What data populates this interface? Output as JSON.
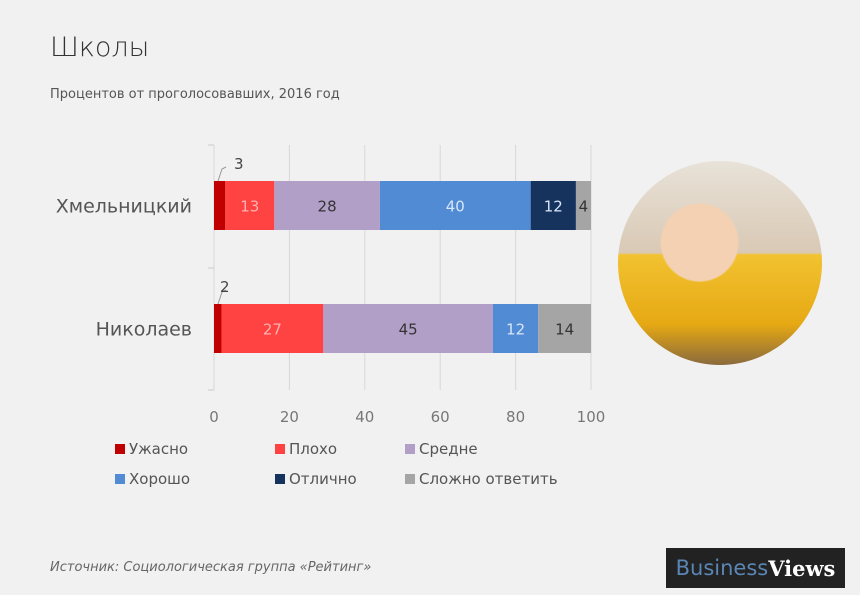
{
  "header": {
    "title": "Школы",
    "subtitle": "Процентов от проголосовавших, 2016 год"
  },
  "chart_data": {
    "type": "bar",
    "orientation": "horizontal-stacked",
    "title": "Школы",
    "subtitle": "Процентов от проголосовавших, 2016 год",
    "categories": [
      "Хмельницкий",
      "Николаев"
    ],
    "series": [
      {
        "name": "Ужасно",
        "color": "#c00000",
        "values": [
          3,
          2
        ]
      },
      {
        "name": "Плохо",
        "color": "#ff4343",
        "values": [
          13,
          27
        ]
      },
      {
        "name": "Средне",
        "color": "#b29fc8",
        "values": [
          28,
          45
        ]
      },
      {
        "name": "Хорошо",
        "color": "#508bd4",
        "values": [
          40,
          12
        ]
      },
      {
        "name": "Отлично",
        "color": "#16335e",
        "values": [
          12,
          0
        ]
      },
      {
        "name": "Сложно ответить",
        "color": "#a5a5a5",
        "values": [
          4,
          14
        ]
      }
    ],
    "label_colors": [
      "#333333",
      "#ffb0b0",
      "#333333",
      "#d8e6f8",
      "#d8e6f8",
      "#333333"
    ],
    "xticks": [
      0,
      20,
      40,
      60,
      80,
      100
    ],
    "xlim": [
      0,
      100
    ],
    "grid": true,
    "legend": "bottom"
  },
  "footer": {
    "source": "Источник: Социологическая группа «Рейтинг»",
    "logo_a": "Business",
    "logo_b": "Views"
  }
}
